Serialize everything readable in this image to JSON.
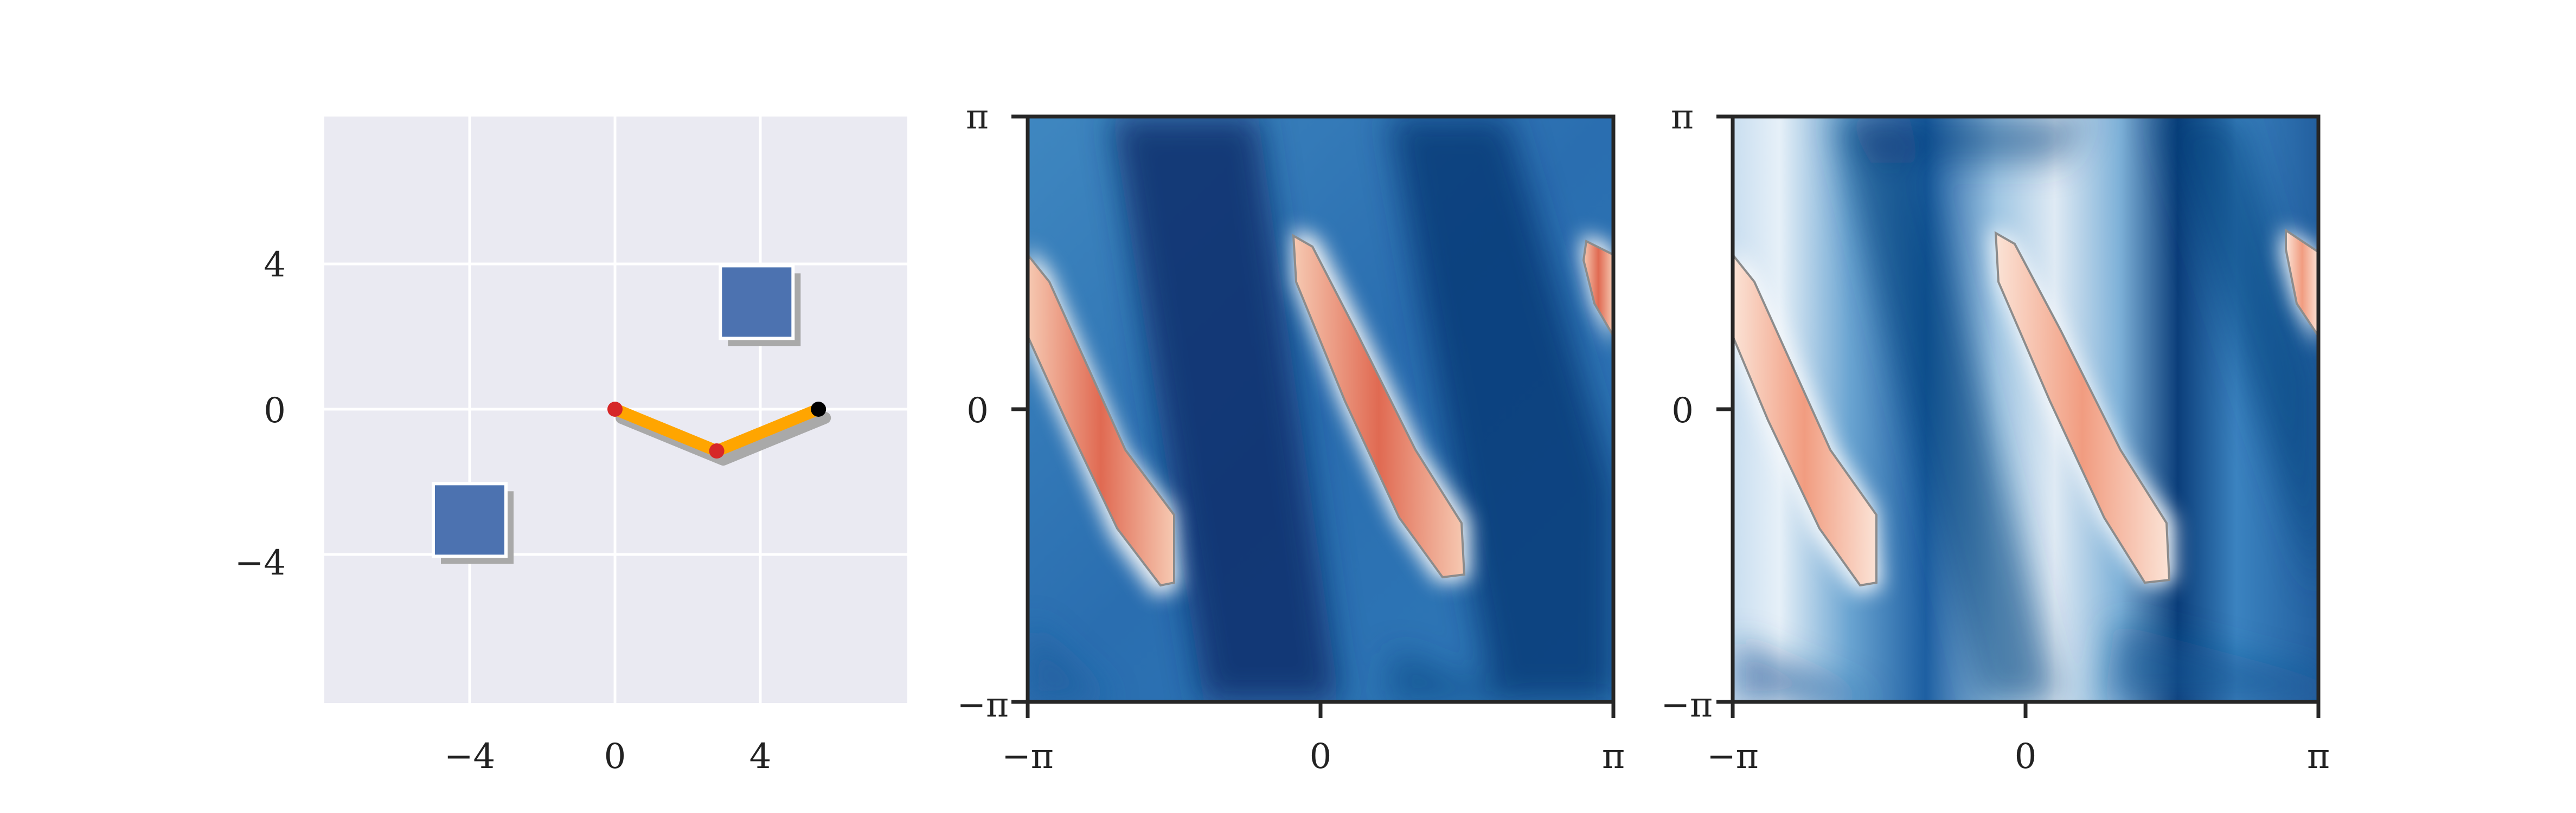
{
  "figure": {
    "panels": 3,
    "description_note": ""
  },
  "chart_data": [
    {
      "type": "scatter",
      "subtype": "robot-arm-workspace",
      "title": "",
      "xlabel": "",
      "ylabel": "",
      "xlim": [
        -8,
        8
      ],
      "ylim": [
        -8,
        8
      ],
      "xticks": [
        -4,
        0,
        4
      ],
      "yticks": [
        4,
        0,
        -4
      ],
      "xtick_labels": [
        "−4",
        "0",
        "4"
      ],
      "ytick_labels": [
        "4",
        "0",
        "−4"
      ],
      "grid": true,
      "obstacles": [
        {
          "name": "obstacle-upper-right",
          "x": 2.9,
          "y": 1.95,
          "w": 2.0,
          "h": 2.0
        },
        {
          "name": "obstacle-lower-left",
          "x": -5.0,
          "y": -4.05,
          "w": 2.0,
          "h": 2.0
        }
      ],
      "arm_joints": [
        {
          "name": "joint-base",
          "x": 0.0,
          "y": 0.0,
          "color": "#d62728"
        },
        {
          "name": "joint-elbow",
          "x": 2.8,
          "y": -1.15,
          "color": "#d62728"
        },
        {
          "name": "end-effector",
          "x": 5.6,
          "y": 0.0,
          "color": "#000000"
        }
      ],
      "colors": {
        "background": "#eaeaf2",
        "grid": "#ffffff",
        "obstacle": "#4c72b0",
        "shadow": "#a9a9a9",
        "link": "#ffa500"
      }
    },
    {
      "type": "heatmap",
      "name": "configuration-space-1",
      "title": "",
      "xlim": [
        -3.14159,
        3.14159
      ],
      "ylim": [
        -3.14159,
        3.14159
      ],
      "xtick_labels": [
        "−π",
        "0",
        "π"
      ],
      "ytick_labels": [
        "π",
        "0",
        "−π"
      ],
      "colormap": "RdBu_r",
      "contour_color": "#8c8c8c"
    },
    {
      "type": "heatmap",
      "name": "configuration-space-2",
      "title": "",
      "xlim": [
        -3.14159,
        3.14159
      ],
      "ylim": [
        -3.14159,
        3.14159
      ],
      "xtick_labels": [
        "−π",
        "0",
        "π"
      ],
      "ytick_labels": [
        "π",
        "0",
        "−π"
      ],
      "colormap": "RdBu_r",
      "contour_color": "#8c8c8c"
    }
  ]
}
